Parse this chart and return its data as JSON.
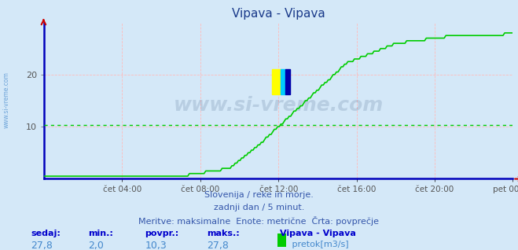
{
  "title": "Vipava - Vipava",
  "bg_color": "#d4e8f8",
  "line_color": "#00cc00",
  "avg_value": 10.3,
  "min_value": 2.0,
  "max_value": 27.8,
  "current_value": 27.8,
  "x_axis_color": "#0000bb",
  "y_axis_color": "#cc0000",
  "grid_color": "#ffbbbb",
  "x_tick_labels": [
    "čet 04:00",
    "čet 08:00",
    "čet 12:00",
    "čet 16:00",
    "čet 20:00",
    "pet 00:00"
  ],
  "y_ticks": [
    10,
    20
  ],
  "ylim": [
    0,
    30
  ],
  "xlim_hours": 24,
  "subtitle1": "Slovenija / reke in morje.",
  "subtitle2": "zadnji dan / 5 minut.",
  "subtitle3": "Meritve: maksimalne  Enote: metrične  Črta: povprečje",
  "footer_label1": "sedaj:",
  "footer_label2": "min.:",
  "footer_label3": "povpr.:",
  "footer_label4": "maks.:",
  "footer_val1": "27,8",
  "footer_val2": "2,0",
  "footer_val3": "10,3",
  "footer_val4": "27,8",
  "footer_series": "Vipava - Vipava",
  "footer_unit": " pretok[m3/s]",
  "watermark": "www.si-vreme.com",
  "side_label": "www.si-vreme.com",
  "title_color": "#1a3a8a",
  "subtitle_color": "#3355aa",
  "footer_label_color": "#0000cc",
  "footer_val_color": "#4488cc",
  "watermark_color": "#1a3a6a",
  "side_text_color": "#4488cc"
}
